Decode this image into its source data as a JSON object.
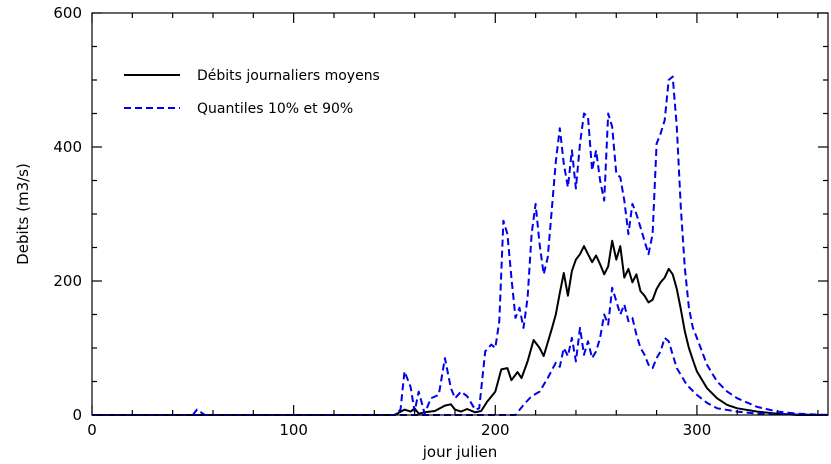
{
  "chart_data": {
    "type": "line",
    "title": "",
    "xlabel": "jour julien",
    "ylabel": "Debits (m3/s)",
    "xlim": [
      0,
      365
    ],
    "ylim": [
      0,
      600
    ],
    "xticks": [
      0,
      100,
      200,
      300
    ],
    "yticks": [
      0,
      200,
      400,
      600
    ],
    "xtick_labels": [
      "0",
      "100",
      "200",
      "300"
    ],
    "ytick_labels": [
      "0",
      "200",
      "400",
      "600"
    ],
    "grid": false,
    "legend_position": "top-left",
    "colors": {
      "mean": "#000000",
      "quantiles": "#0000ee"
    },
    "series": [
      {
        "name": "Débits journaliers moyens",
        "style": "solid",
        "color": "#000000",
        "points": [
          [
            0,
            0
          ],
          [
            150,
            0
          ],
          [
            155,
            8
          ],
          [
            158,
            5
          ],
          [
            160,
            10
          ],
          [
            162,
            2
          ],
          [
            165,
            4
          ],
          [
            170,
            6
          ],
          [
            175,
            14
          ],
          [
            178,
            16
          ],
          [
            180,
            8
          ],
          [
            183,
            5
          ],
          [
            186,
            9
          ],
          [
            190,
            4
          ],
          [
            193,
            6
          ],
          [
            196,
            20
          ],
          [
            200,
            35
          ],
          [
            203,
            68
          ],
          [
            206,
            70
          ],
          [
            208,
            52
          ],
          [
            211,
            64
          ],
          [
            213,
            55
          ],
          [
            216,
            80
          ],
          [
            219,
            112
          ],
          [
            222,
            100
          ],
          [
            224,
            88
          ],
          [
            226,
            108
          ],
          [
            228,
            128
          ],
          [
            230,
            150
          ],
          [
            232,
            182
          ],
          [
            234,
            212
          ],
          [
            236,
            178
          ],
          [
            238,
            215
          ],
          [
            240,
            232
          ],
          [
            242,
            240
          ],
          [
            244,
            252
          ],
          [
            246,
            240
          ],
          [
            248,
            228
          ],
          [
            250,
            238
          ],
          [
            252,
            225
          ],
          [
            254,
            210
          ],
          [
            256,
            222
          ],
          [
            258,
            260
          ],
          [
            260,
            232
          ],
          [
            262,
            252
          ],
          [
            264,
            205
          ],
          [
            266,
            218
          ],
          [
            268,
            198
          ],
          [
            270,
            210
          ],
          [
            272,
            185
          ],
          [
            274,
            178
          ],
          [
            276,
            168
          ],
          [
            278,
            172
          ],
          [
            280,
            188
          ],
          [
            282,
            198
          ],
          [
            284,
            205
          ],
          [
            286,
            218
          ],
          [
            288,
            210
          ],
          [
            290,
            188
          ],
          [
            292,
            158
          ],
          [
            294,
            125
          ],
          [
            296,
            100
          ],
          [
            298,
            82
          ],
          [
            300,
            65
          ],
          [
            305,
            40
          ],
          [
            310,
            25
          ],
          [
            315,
            15
          ],
          [
            320,
            10
          ],
          [
            330,
            5
          ],
          [
            340,
            2
          ],
          [
            350,
            0
          ],
          [
            365,
            0
          ]
        ]
      },
      {
        "name": "Quantiles 10% et 90%",
        "style": "dashed",
        "color": "#0000ee",
        "points": [
          [
            0,
            0
          ],
          [
            150,
            0
          ],
          [
            153,
            8
          ],
          [
            155,
            65
          ],
          [
            158,
            42
          ],
          [
            160,
            5
          ],
          [
            162,
            35
          ],
          [
            165,
            2
          ],
          [
            168,
            25
          ],
          [
            172,
            30
          ],
          [
            175,
            85
          ],
          [
            178,
            40
          ],
          [
            180,
            25
          ],
          [
            183,
            35
          ],
          [
            186,
            28
          ],
          [
            190,
            8
          ],
          [
            192,
            10
          ],
          [
            195,
            95
          ],
          [
            198,
            105
          ],
          [
            200,
            100
          ],
          [
            202,
            140
          ],
          [
            204,
            290
          ],
          [
            206,
            270
          ],
          [
            208,
            205
          ],
          [
            210,
            145
          ],
          [
            212,
            160
          ],
          [
            214,
            130
          ],
          [
            216,
            175
          ],
          [
            218,
            270
          ],
          [
            220,
            315
          ],
          [
            222,
            255
          ],
          [
            224,
            210
          ],
          [
            226,
            235
          ],
          [
            228,
            305
          ],
          [
            230,
            378
          ],
          [
            232,
            428
          ],
          [
            234,
            375
          ],
          [
            236,
            340
          ],
          [
            238,
            395
          ],
          [
            240,
            338
          ],
          [
            242,
            405
          ],
          [
            244,
            450
          ],
          [
            246,
            445
          ],
          [
            248,
            365
          ],
          [
            250,
            395
          ],
          [
            252,
            350
          ],
          [
            254,
            320
          ],
          [
            256,
            450
          ],
          [
            258,
            430
          ],
          [
            260,
            360
          ],
          [
            262,
            355
          ],
          [
            264,
            320
          ],
          [
            266,
            270
          ],
          [
            268,
            315
          ],
          [
            270,
            300
          ],
          [
            272,
            280
          ],
          [
            274,
            260
          ],
          [
            276,
            240
          ],
          [
            278,
            270
          ],
          [
            280,
            405
          ],
          [
            282,
            420
          ],
          [
            284,
            440
          ],
          [
            286,
            500
          ],
          [
            288,
            505
          ],
          [
            290,
            430
          ],
          [
            292,
            310
          ],
          [
            294,
            220
          ],
          [
            296,
            160
          ],
          [
            298,
            130
          ],
          [
            300,
            115
          ],
          [
            305,
            75
          ],
          [
            310,
            50
          ],
          [
            315,
            35
          ],
          [
            320,
            25
          ],
          [
            330,
            12
          ],
          [
            340,
            5
          ],
          [
            350,
            2
          ],
          [
            365,
            0
          ]
        ]
      },
      {
        "name": "Quantiles 10% et 90%",
        "style": "dashed",
        "color": "#0000ee",
        "points": [
          [
            0,
            0
          ],
          [
            200,
            0
          ],
          [
            210,
            0
          ],
          [
            214,
            15
          ],
          [
            218,
            28
          ],
          [
            222,
            35
          ],
          [
            226,
            55
          ],
          [
            230,
            78
          ],
          [
            232,
            72
          ],
          [
            234,
            100
          ],
          [
            236,
            88
          ],
          [
            238,
            115
          ],
          [
            240,
            80
          ],
          [
            242,
            130
          ],
          [
            244,
            90
          ],
          [
            246,
            110
          ],
          [
            248,
            85
          ],
          [
            250,
            95
          ],
          [
            252,
            115
          ],
          [
            254,
            150
          ],
          [
            256,
            135
          ],
          [
            258,
            190
          ],
          [
            260,
            170
          ],
          [
            262,
            150
          ],
          [
            264,
            165
          ],
          [
            266,
            140
          ],
          [
            268,
            145
          ],
          [
            270,
            120
          ],
          [
            272,
            100
          ],
          [
            274,
            90
          ],
          [
            276,
            75
          ],
          [
            278,
            70
          ],
          [
            280,
            85
          ],
          [
            282,
            95
          ],
          [
            284,
            115
          ],
          [
            286,
            110
          ],
          [
            288,
            90
          ],
          [
            290,
            70
          ],
          [
            295,
            45
          ],
          [
            300,
            30
          ],
          [
            305,
            18
          ],
          [
            310,
            10
          ],
          [
            320,
            5
          ],
          [
            330,
            2
          ],
          [
            365,
            0
          ]
        ]
      },
      {
        "name": "",
        "style": "dashed",
        "color": "#0000ee",
        "points": [
          [
            50,
            0
          ],
          [
            52,
            8
          ],
          [
            54,
            4
          ],
          [
            56,
            0
          ]
        ]
      }
    ],
    "legend": [
      {
        "label": "Débits journaliers moyens",
        "style": "solid",
        "color": "#000000"
      },
      {
        "label": "Quantiles 10% et 90%",
        "style": "dashed",
        "color": "#0000ee"
      }
    ]
  }
}
